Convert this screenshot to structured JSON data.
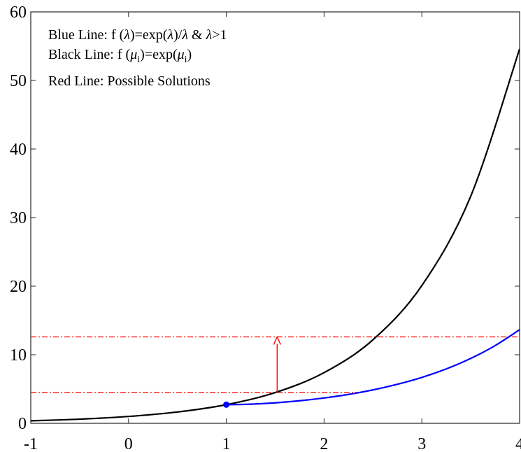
{
  "chart_data": {
    "type": "line",
    "title": "",
    "xlabel": "",
    "ylabel": "",
    "xlim": [
      -1,
      4
    ],
    "ylim": [
      0,
      60
    ],
    "xticks": [
      -1,
      0,
      1,
      2,
      3,
      4
    ],
    "xtick_labels": [
      "-1",
      "0",
      "1",
      "2",
      "3",
      "4"
    ],
    "yticks": [
      0,
      10,
      20,
      30,
      40,
      50,
      60
    ],
    "ytick_labels": [
      "0",
      "10",
      "20",
      "30",
      "40",
      "50",
      "60"
    ],
    "grid": false,
    "legend_placement": "top-left",
    "annotations": [
      {
        "prefix": "Blue Line: f (",
        "sym1": "λ",
        "mid": ")=exp(",
        "sym2": "λ",
        "mid2": ")/",
        "sym3": "λ",
        "mid3": " & ",
        "sym4": "λ",
        "suffix": ">1"
      },
      {
        "prefix": "Black Line: f (",
        "sym1": "μ",
        "sub1": "i",
        "mid": ")=exp(",
        "sym2": "μ",
        "sub2": "i",
        "suffix": ")"
      },
      {
        "text": "Red Line: Possible Solutions"
      }
    ],
    "series": [
      {
        "color": "#000000",
        "x": [
          -1,
          -0.5,
          0,
          0.5,
          1,
          1.5,
          2,
          2.5,
          3,
          3.5,
          4
        ],
        "y": [
          0.368,
          0.607,
          1.0,
          1.649,
          2.718,
          4.482,
          7.389,
          12.182,
          20.086,
          33.115,
          54.598
        ]
      },
      {
        "color": "#0000ff",
        "x": [
          1,
          1.25,
          1.5,
          1.75,
          2,
          2.25,
          2.5,
          2.75,
          3,
          3.25,
          3.5,
          3.75,
          4
        ],
        "y": [
          2.718,
          2.793,
          2.988,
          3.29,
          3.695,
          4.21,
          4.873,
          5.692,
          6.695,
          7.93,
          9.461,
          11.336,
          13.65
        ],
        "start_marker": {
          "x": 1,
          "y": 2.718
        }
      }
    ],
    "reference_lines": [
      {
        "color": "#ff0000",
        "style": "dash-dot",
        "y": 4.5,
        "x_from": -1,
        "x_to": 2.35
      },
      {
        "color": "#ff0000",
        "style": "dash-dot",
        "y": 12.6,
        "x_from": -1,
        "x_to": 4
      }
    ],
    "arrow": {
      "color": "#ff0000",
      "x": 1.52,
      "y_from": 4.5,
      "y_to": 12.6
    }
  }
}
